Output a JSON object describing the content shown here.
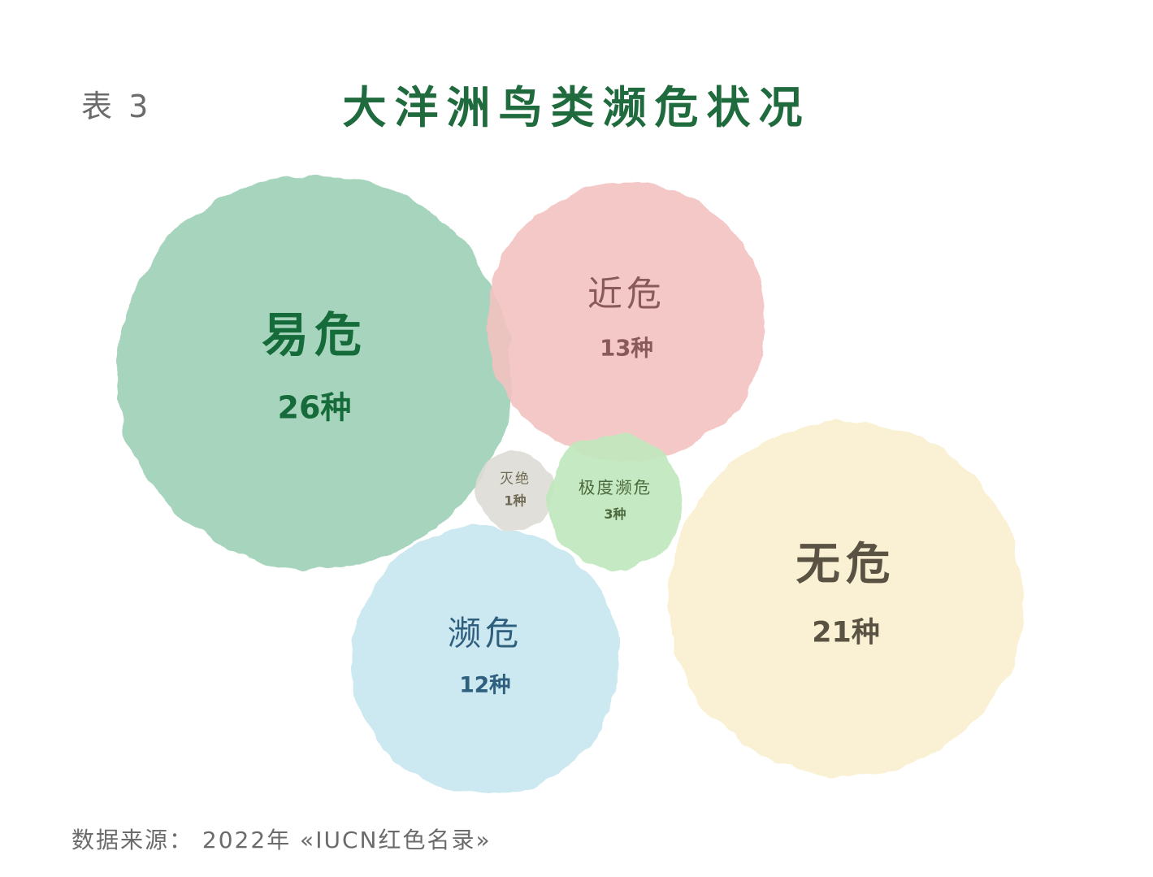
{
  "table_label": "表 3",
  "source_note": "数据来源： 2022年 «IUCN红色名录»",
  "chart_data": {
    "type": "bubble",
    "title": "大洋洲鸟类濒危状况",
    "unit_suffix": "种",
    "series": [
      {
        "name": "易危",
        "value": 26,
        "color": "#9ccfb6",
        "text_color": "#166b3a"
      },
      {
        "name": "近危",
        "value": 13,
        "color": "#f3c2c0",
        "text_color": "#8a5a5a"
      },
      {
        "name": "灭绝",
        "value": 1,
        "color": "#dedbd5",
        "text_color": "#6e6a55"
      },
      {
        "name": "极度濒危",
        "value": 3,
        "color": "#bfe8bc",
        "text_color": "#4d6a3c"
      },
      {
        "name": "濒危",
        "value": 12,
        "color": "#c6e5ee",
        "text_color": "#2f5f7e"
      },
      {
        "name": "无危",
        "value": 21,
        "color": "#faefcf",
        "text_color": "#5a5343"
      }
    ]
  }
}
